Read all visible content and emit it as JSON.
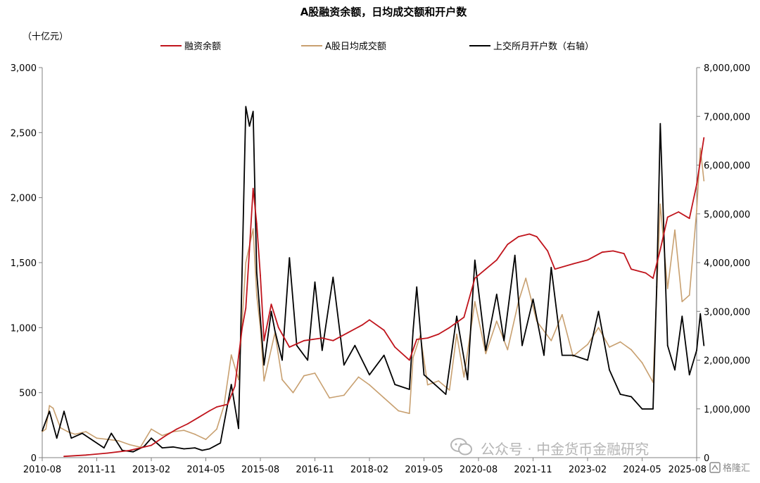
{
  "chart_data": {
    "type": "line",
    "title": "A股融资余额，日均成交额和开户数",
    "y_unit_label": "（十亿元）",
    "legend_placement": "top",
    "grid": false,
    "x_ticks": [
      "2010-08",
      "2011-11",
      "2013-02",
      "2014-05",
      "2015-08",
      "2016-11",
      "2018-02",
      "2019-05",
      "2020-08",
      "2021-11",
      "2023-02",
      "2024-05",
      "2025-08"
    ],
    "x_start": "2010-08",
    "x_end": "2025-08",
    "ylim_left": [
      0,
      3000
    ],
    "yticks_left": [
      "0",
      "500",
      "1,000",
      "1,500",
      "2,000",
      "2,500",
      "3,000"
    ],
    "ylim_right": [
      0,
      8000000
    ],
    "yticks_right": [
      "0",
      "1,000,000",
      "2,000,000",
      "3,000,000",
      "4,000,000",
      "5,000,000",
      "6,000,000",
      "7,000,000",
      "8,000,000"
    ],
    "series": [
      {
        "name": "融资余额",
        "color": "#c0141c",
        "axis": "left",
        "points": [
          [
            "2011-02",
            10
          ],
          [
            "2011-08",
            20
          ],
          [
            "2012-02",
            35
          ],
          [
            "2012-08",
            55
          ],
          [
            "2013-02",
            95
          ],
          [
            "2013-06",
            170
          ],
          [
            "2013-09",
            220
          ],
          [
            "2013-12",
            260
          ],
          [
            "2014-03",
            310
          ],
          [
            "2014-06",
            360
          ],
          [
            "2014-08",
            390
          ],
          [
            "2014-11",
            410
          ],
          [
            "2015-01",
            550
          ],
          [
            "2015-03",
            1000
          ],
          [
            "2015-04",
            1150
          ],
          [
            "2015-05",
            1600
          ],
          [
            "2015-06",
            2070
          ],
          [
            "2015-07",
            1800
          ],
          [
            "2015-08",
            1400
          ],
          [
            "2015-09",
            900
          ],
          [
            "2015-11",
            1180
          ],
          [
            "2016-01",
            1000
          ],
          [
            "2016-04",
            850
          ],
          [
            "2016-08",
            900
          ],
          [
            "2017-01",
            920
          ],
          [
            "2017-04",
            900
          ],
          [
            "2017-08",
            960
          ],
          [
            "2017-12",
            1020
          ],
          [
            "2018-02",
            1060
          ],
          [
            "2018-06",
            980
          ],
          [
            "2018-09",
            850
          ],
          [
            "2019-01",
            750
          ],
          [
            "2019-03",
            910
          ],
          [
            "2019-06",
            920
          ],
          [
            "2019-09",
            950
          ],
          [
            "2019-12",
            1000
          ],
          [
            "2020-04",
            1080
          ],
          [
            "2020-07",
            1380
          ],
          [
            "2020-10",
            1450
          ],
          [
            "2021-01",
            1520
          ],
          [
            "2021-04",
            1640
          ],
          [
            "2021-07",
            1700
          ],
          [
            "2021-10",
            1720
          ],
          [
            "2021-12",
            1700
          ],
          [
            "2022-03",
            1590
          ],
          [
            "2022-05",
            1450
          ],
          [
            "2022-10",
            1490
          ],
          [
            "2023-02",
            1520
          ],
          [
            "2023-06",
            1580
          ],
          [
            "2023-09",
            1590
          ],
          [
            "2023-12",
            1570
          ],
          [
            "2024-02",
            1450
          ],
          [
            "2024-06",
            1420
          ],
          [
            "2024-08",
            1380
          ],
          [
            "2024-10",
            1600
          ],
          [
            "2024-12",
            1850
          ],
          [
            "2025-03",
            1890
          ],
          [
            "2025-06",
            1840
          ],
          [
            "2025-08",
            2100
          ],
          [
            "2025-10",
            2460
          ]
        ]
      },
      {
        "name": "A股日均成交额",
        "color": "#c8a070",
        "axis": "left",
        "points": [
          [
            "2010-08",
            200
          ],
          [
            "2010-09",
            220
          ],
          [
            "2010-10",
            400
          ],
          [
            "2010-11",
            380
          ],
          [
            "2011-01",
            230
          ],
          [
            "2011-03",
            200
          ],
          [
            "2011-05",
            180
          ],
          [
            "2011-08",
            200
          ],
          [
            "2011-11",
            150
          ],
          [
            "2012-02",
            140
          ],
          [
            "2012-05",
            130
          ],
          [
            "2012-08",
            100
          ],
          [
            "2012-11",
            80
          ],
          [
            "2013-02",
            220
          ],
          [
            "2013-05",
            170
          ],
          [
            "2013-08",
            200
          ],
          [
            "2013-11",
            210
          ],
          [
            "2014-02",
            180
          ],
          [
            "2014-05",
            140
          ],
          [
            "2014-08",
            220
          ],
          [
            "2014-10",
            400
          ],
          [
            "2014-12",
            790
          ],
          [
            "2015-02",
            600
          ],
          [
            "2015-04",
            1500
          ],
          [
            "2015-06",
            1760
          ],
          [
            "2015-07",
            1250
          ],
          [
            "2015-08",
            1000
          ],
          [
            "2015-09",
            590
          ],
          [
            "2015-12",
            960
          ],
          [
            "2016-02",
            600
          ],
          [
            "2016-05",
            500
          ],
          [
            "2016-08",
            630
          ],
          [
            "2016-11",
            650
          ],
          [
            "2017-03",
            460
          ],
          [
            "2017-07",
            480
          ],
          [
            "2017-11",
            620
          ],
          [
            "2018-02",
            560
          ],
          [
            "2018-06",
            460
          ],
          [
            "2018-10",
            360
          ],
          [
            "2019-01",
            340
          ],
          [
            "2019-02",
            770
          ],
          [
            "2019-04",
            940
          ],
          [
            "2019-06",
            560
          ],
          [
            "2019-09",
            590
          ],
          [
            "2019-12",
            520
          ],
          [
            "2020-02",
            950
          ],
          [
            "2020-04",
            620
          ],
          [
            "2020-07",
            1200
          ],
          [
            "2020-10",
            800
          ],
          [
            "2021-01",
            1050
          ],
          [
            "2021-04",
            830
          ],
          [
            "2021-07",
            1200
          ],
          [
            "2021-09",
            1380
          ],
          [
            "2021-12",
            1050
          ],
          [
            "2022-04",
            900
          ],
          [
            "2022-07",
            1100
          ],
          [
            "2022-10",
            780
          ],
          [
            "2023-02",
            870
          ],
          [
            "2023-05",
            1000
          ],
          [
            "2023-08",
            850
          ],
          [
            "2023-11",
            890
          ],
          [
            "2024-02",
            830
          ],
          [
            "2024-05",
            730
          ],
          [
            "2024-08",
            580
          ],
          [
            "2024-10",
            1950
          ],
          [
            "2024-12",
            1300
          ],
          [
            "2025-02",
            1750
          ],
          [
            "2025-04",
            1200
          ],
          [
            "2025-06",
            1250
          ],
          [
            "2025-08",
            1900
          ],
          [
            "2025-09",
            2380
          ],
          [
            "2025-10",
            2130
          ]
        ]
      },
      {
        "name": "上交所月开户数（右轴）",
        "color": "#000000",
        "axis": "right",
        "points": [
          [
            "2010-08",
            550000
          ],
          [
            "2010-10",
            950000
          ],
          [
            "2010-12",
            400000
          ],
          [
            "2011-02",
            950000
          ],
          [
            "2011-04",
            400000
          ],
          [
            "2011-07",
            500000
          ],
          [
            "2011-10",
            350000
          ],
          [
            "2012-01",
            200000
          ],
          [
            "2012-03",
            500000
          ],
          [
            "2012-06",
            150000
          ],
          [
            "2012-09",
            120000
          ],
          [
            "2012-12",
            230000
          ],
          [
            "2013-02",
            400000
          ],
          [
            "2013-05",
            200000
          ],
          [
            "2013-08",
            220000
          ],
          [
            "2013-11",
            180000
          ],
          [
            "2014-02",
            200000
          ],
          [
            "2014-04",
            150000
          ],
          [
            "2014-06",
            180000
          ],
          [
            "2014-09",
            300000
          ],
          [
            "2014-12",
            1500000
          ],
          [
            "2015-02",
            600000
          ],
          [
            "2015-04",
            7200000
          ],
          [
            "2015-05",
            6800000
          ],
          [
            "2015-06",
            7100000
          ],
          [
            "2015-07",
            3800000
          ],
          [
            "2015-09",
            1900000
          ],
          [
            "2015-11",
            3000000
          ],
          [
            "2015-12",
            2600000
          ],
          [
            "2016-02",
            2000000
          ],
          [
            "2016-04",
            4100000
          ],
          [
            "2016-06",
            2300000
          ],
          [
            "2016-09",
            2000000
          ],
          [
            "2016-11",
            3600000
          ],
          [
            "2017-01",
            2200000
          ],
          [
            "2017-04",
            3700000
          ],
          [
            "2017-07",
            1900000
          ],
          [
            "2017-10",
            2300000
          ],
          [
            "2018-02",
            1700000
          ],
          [
            "2018-06",
            2100000
          ],
          [
            "2018-09",
            1500000
          ],
          [
            "2019-01",
            1400000
          ],
          [
            "2019-02",
            2600000
          ],
          [
            "2019-03",
            3500000
          ],
          [
            "2019-05",
            1700000
          ],
          [
            "2019-08",
            1500000
          ],
          [
            "2019-11",
            1300000
          ],
          [
            "2020-02",
            2900000
          ],
          [
            "2020-05",
            1600000
          ],
          [
            "2020-07",
            4050000
          ],
          [
            "2020-10",
            2200000
          ],
          [
            "2021-01",
            3350000
          ],
          [
            "2021-03",
            2400000
          ],
          [
            "2021-06",
            4150000
          ],
          [
            "2021-08",
            2300000
          ],
          [
            "2021-11",
            3250000
          ],
          [
            "2022-02",
            2100000
          ],
          [
            "2022-04",
            3900000
          ],
          [
            "2022-07",
            2100000
          ],
          [
            "2022-10",
            2100000
          ],
          [
            "2023-02",
            2000000
          ],
          [
            "2023-05",
            3000000
          ],
          [
            "2023-08",
            1800000
          ],
          [
            "2023-11",
            1300000
          ],
          [
            "2024-02",
            1250000
          ],
          [
            "2024-05",
            1000000
          ],
          [
            "2024-08",
            1000000
          ],
          [
            "2024-09",
            3500000
          ],
          [
            "2024-10",
            6850000
          ],
          [
            "2024-12",
            2300000
          ],
          [
            "2025-02",
            1800000
          ],
          [
            "2025-04",
            2900000
          ],
          [
            "2025-06",
            1700000
          ],
          [
            "2025-08",
            2200000
          ],
          [
            "2025-09",
            2950000
          ],
          [
            "2025-10",
            2300000
          ]
        ]
      }
    ]
  },
  "watermark": {
    "text": "公众号 · 中金货币金融研究",
    "corner_text": "格隆汇"
  }
}
